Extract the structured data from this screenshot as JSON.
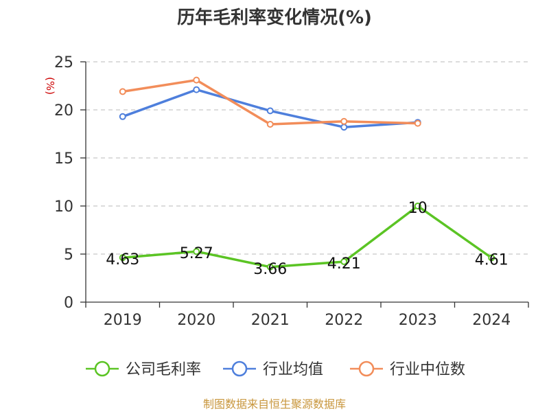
{
  "chart_data": {
    "type": "line",
    "title": "历年毛利率变化情况(%)",
    "y_unit": "(%)",
    "xlabel": "",
    "ylabel": "",
    "categories": [
      "2019",
      "2020",
      "2021",
      "2022",
      "2023",
      "2024"
    ],
    "ylim": [
      0,
      25
    ],
    "yticks": [
      0,
      5,
      10,
      15,
      20,
      25
    ],
    "grid": true,
    "legend_position": "bottom",
    "series": [
      {
        "name": "公司毛利率",
        "color": "#5bc424",
        "values": [
          4.63,
          5.27,
          3.66,
          4.21,
          10,
          4.61
        ],
        "labels": [
          "4.63",
          "5.27",
          "3.66",
          "4.21",
          "10",
          "4.61"
        ]
      },
      {
        "name": "行业均值",
        "color": "#4e7fdc",
        "values": [
          19.3,
          22.1,
          19.9,
          18.2,
          18.7,
          null
        ]
      },
      {
        "name": "行业中位数",
        "color": "#f28d5a",
        "values": [
          21.9,
          23.1,
          18.5,
          18.8,
          18.6,
          null
        ]
      }
    ]
  },
  "source": "制图数据来自恒生聚源数据库"
}
